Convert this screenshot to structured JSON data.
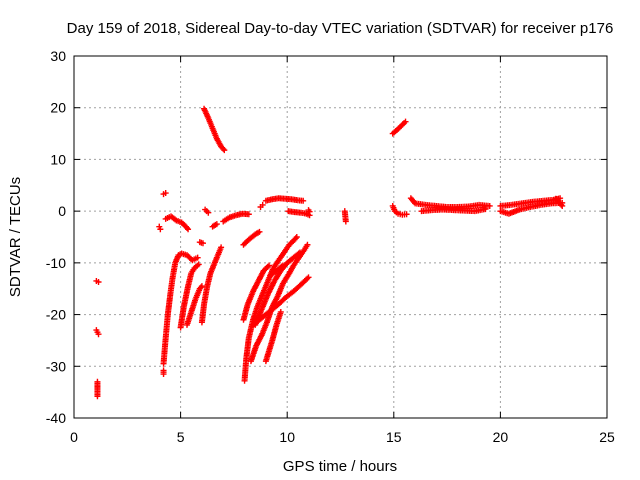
{
  "chart_data": {
    "type": "scatter",
    "title": "Day 159 of 2018, Sidereal Day-to-day VTEC variation (SDTVAR) for receiver p176",
    "xlabel": "GPS time / hours",
    "ylabel": "SDTVAR / TECUs",
    "xlim": [
      0,
      25
    ],
    "ylim": [
      -40,
      30
    ],
    "xticks": [
      0,
      5,
      10,
      15,
      20,
      25
    ],
    "yticks": [
      -40,
      -30,
      -20,
      -10,
      0,
      10,
      20,
      30
    ],
    "grid": true,
    "marker": "plus",
    "color": "#ff0000",
    "series": [
      {
        "name": "SDTVAR",
        "segments": [
          {
            "points": [
              [
                1.05,
                -13.5
              ],
              [
                1.15,
                -13.7
              ]
            ]
          },
          {
            "points": [
              [
                1.05,
                -23.0
              ],
              [
                1.15,
                -23.8
              ]
            ]
          },
          {
            "points": [
              [
                1.1,
                -33.0
              ],
              [
                1.1,
                -35.8
              ]
            ]
          },
          {
            "points": [
              [
                4.2,
                -29.5
              ],
              [
                4.28,
                -25.5
              ],
              [
                4.4,
                -20.0
              ],
              [
                4.52,
                -16.0
              ],
              [
                4.62,
                -13.0
              ],
              [
                4.75,
                -10.0
              ],
              [
                4.9,
                -8.5
              ],
              [
                5.05,
                -8.2
              ],
              [
                5.3,
                -8.5
              ],
              [
                5.55,
                -9.5
              ],
              [
                5.8,
                -9.0
              ]
            ]
          },
          {
            "points": [
              [
                4.2,
                -30.8
              ],
              [
                4.2,
                -31.5
              ]
            ]
          },
          {
            "points": [
              [
                4.2,
                3.3
              ],
              [
                4.3,
                3.5
              ]
            ]
          },
          {
            "points": [
              [
                4.3,
                -1.5
              ],
              [
                4.55,
                -1.0
              ],
              [
                4.8,
                -1.8
              ],
              [
                5.05,
                -2.2
              ],
              [
                5.25,
                -3.0
              ],
              [
                5.35,
                -3.5
              ]
            ]
          },
          {
            "points": [
              [
                4.0,
                -3.0
              ],
              [
                4.05,
                -3.5
              ]
            ]
          },
          {
            "points": [
              [
                5.0,
                -22.5
              ],
              [
                5.15,
                -18.5
              ],
              [
                5.35,
                -14.5
              ],
              [
                5.5,
                -12.0
              ],
              [
                5.65,
                -11.0
              ],
              [
                5.85,
                -10.3
              ]
            ]
          },
          {
            "points": [
              [
                5.3,
                -22.0
              ],
              [
                5.5,
                -19.5
              ],
              [
                5.7,
                -17.0
              ],
              [
                5.9,
                -15.0
              ],
              [
                6.0,
                -14.5
              ]
            ]
          },
          {
            "points": [
              [
                6.0,
                -21.5
              ],
              [
                6.1,
                -18.0
              ],
              [
                6.25,
                -14.5
              ],
              [
                6.4,
                -12.0
              ],
              [
                6.55,
                -10.5
              ],
              [
                6.7,
                -9.0
              ],
              [
                6.9,
                -7.0
              ]
            ]
          },
          {
            "points": [
              [
                5.9,
                -6.0
              ],
              [
                6.05,
                -6.2
              ]
            ]
          },
          {
            "points": [
              [
                6.1,
                19.8
              ],
              [
                6.3,
                18.0
              ],
              [
                6.5,
                16.0
              ],
              [
                6.7,
                14.0
              ],
              [
                6.9,
                12.5
              ],
              [
                7.05,
                11.8
              ]
            ]
          },
          {
            "points": [
              [
                6.15,
                0.3
              ],
              [
                6.3,
                -0.3
              ]
            ]
          },
          {
            "points": [
              [
                6.5,
                -3.0
              ],
              [
                6.7,
                -2.5
              ]
            ]
          },
          {
            "points": [
              [
                7.0,
                -2.0
              ],
              [
                7.3,
                -1.2
              ],
              [
                7.6,
                -0.8
              ],
              [
                7.9,
                -0.5
              ],
              [
                8.2,
                -0.6
              ]
            ]
          },
          {
            "points": [
              [
                7.95,
                -6.5
              ],
              [
                8.2,
                -5.5
              ],
              [
                8.5,
                -4.5
              ],
              [
                8.7,
                -4.0
              ]
            ]
          },
          {
            "points": [
              [
                8.0,
                -32.8
              ],
              [
                8.08,
                -28.5
              ],
              [
                8.2,
                -24.5
              ],
              [
                8.4,
                -21.0
              ],
              [
                8.6,
                -18.5
              ],
              [
                8.85,
                -16.0
              ],
              [
                9.1,
                -13.5
              ],
              [
                9.35,
                -11.0
              ],
              [
                9.6,
                -9.5
              ],
              [
                9.85,
                -8.0
              ],
              [
                10.1,
                -6.5
              ],
              [
                10.35,
                -5.5
              ],
              [
                10.45,
                -5.0
              ]
            ]
          },
          {
            "points": [
              [
                7.95,
                -21.0
              ],
              [
                8.15,
                -18.0
              ],
              [
                8.4,
                -15.5
              ],
              [
                8.65,
                -13.5
              ],
              [
                8.9,
                -11.5
              ],
              [
                9.15,
                -10.5
              ]
            ]
          },
          {
            "points": [
              [
                8.3,
                -29.0
              ],
              [
                8.55,
                -26.0
              ],
              [
                8.8,
                -24.0
              ],
              [
                9.05,
                -21.5
              ],
              [
                9.3,
                -18.5
              ],
              [
                9.55,
                -16.5
              ],
              [
                9.8,
                -14.0
              ],
              [
                10.1,
                -12.0
              ],
              [
                10.3,
                -10.5
              ],
              [
                10.55,
                -9.0
              ],
              [
                10.8,
                -7.5
              ],
              [
                10.95,
                -6.5
              ]
            ]
          },
          {
            "points": [
              [
                8.5,
                -22.0
              ],
              [
                8.8,
                -19.0
              ],
              [
                9.1,
                -16.0
              ],
              [
                9.4,
                -13.5
              ],
              [
                9.7,
                -11.5
              ],
              [
                10.0,
                -10.0
              ],
              [
                10.3,
                -9.0
              ],
              [
                10.6,
                -8.0
              ]
            ]
          },
          {
            "points": [
              [
                8.4,
                -22.0
              ],
              [
                8.7,
                -21.0
              ],
              [
                9.0,
                -20.0
              ],
              [
                9.3,
                -19.0
              ],
              [
                9.6,
                -18.0
              ],
              [
                9.9,
                -16.8
              ],
              [
                10.3,
                -15.5
              ],
              [
                10.7,
                -14.0
              ],
              [
                11.0,
                -12.8
              ]
            ]
          },
          {
            "points": [
              [
                9.2,
                -12.5
              ],
              [
                9.5,
                -11.5
              ],
              [
                9.8,
                -10.5
              ]
            ]
          },
          {
            "points": [
              [
                9.0,
                -29.0
              ],
              [
                9.3,
                -25.0
              ],
              [
                9.5,
                -22.0
              ],
              [
                9.7,
                -19.5
              ]
            ]
          },
          {
            "points": [
              [
                9.0,
                2.0
              ],
              [
                9.3,
                2.3
              ],
              [
                9.6,
                2.5
              ],
              [
                9.9,
                2.4
              ],
              [
                10.2,
                2.3
              ],
              [
                10.5,
                2.1
              ],
              [
                10.75,
                2.0
              ]
            ]
          },
          {
            "points": [
              [
                10.05,
                0.0
              ],
              [
                10.35,
                -0.2
              ],
              [
                10.65,
                -0.3
              ],
              [
                10.9,
                -0.5
              ],
              [
                11.05,
                -0.8
              ]
            ]
          },
          {
            "points": [
              [
                11.0,
                0.2
              ],
              [
                11.05,
                -0.1
              ]
            ]
          },
          {
            "points": [
              [
                8.75,
                0.8
              ],
              [
                8.85,
                1.2
              ]
            ]
          },
          {
            "points": [
              [
                12.7,
                0.0
              ],
              [
                12.75,
                -2.0
              ]
            ]
          },
          {
            "points": [
              [
                14.95,
                15.0
              ],
              [
                15.15,
                15.7
              ],
              [
                15.35,
                16.5
              ],
              [
                15.55,
                17.3
              ]
            ]
          },
          {
            "points": [
              [
                14.95,
                1.0
              ],
              [
                15.05,
                0.0
              ],
              [
                15.2,
                -0.5
              ],
              [
                15.4,
                -0.7
              ],
              [
                15.6,
                -0.6
              ]
            ]
          },
          {
            "points": [
              [
                15.8,
                2.5
              ],
              [
                16.0,
                1.5
              ],
              [
                16.5,
                1.2
              ],
              [
                17.0,
                1.0
              ],
              [
                17.5,
                0.8
              ],
              [
                18.0,
                0.8
              ],
              [
                18.5,
                0.9
              ],
              [
                19.0,
                1.2
              ],
              [
                19.5,
                1.0
              ]
            ]
          },
          {
            "points": [
              [
                16.3,
                0.0
              ],
              [
                16.8,
                0.2
              ],
              [
                17.3,
                0.3
              ],
              [
                17.8,
                0.2
              ],
              [
                18.3,
                0.1
              ],
              [
                18.8,
                0.0
              ],
              [
                19.3,
                0.4
              ]
            ]
          },
          {
            "points": [
              [
                20.0,
                1.0
              ],
              [
                20.5,
                1.2
              ],
              [
                21.0,
                1.5
              ],
              [
                21.5,
                1.8
              ],
              [
                22.0,
                2.0
              ],
              [
                22.5,
                2.2
              ],
              [
                22.8,
                2.5
              ]
            ]
          },
          {
            "points": [
              [
                20.0,
                0.0
              ],
              [
                20.4,
                -0.5
              ],
              [
                20.9,
                0.3
              ],
              [
                21.4,
                0.8
              ],
              [
                21.9,
                1.2
              ],
              [
                22.4,
                1.5
              ],
              [
                22.9,
                1.6
              ]
            ]
          },
          {
            "points": [
              [
                22.6,
                2.4
              ],
              [
                22.9,
                1.0
              ]
            ]
          }
        ]
      }
    ]
  }
}
